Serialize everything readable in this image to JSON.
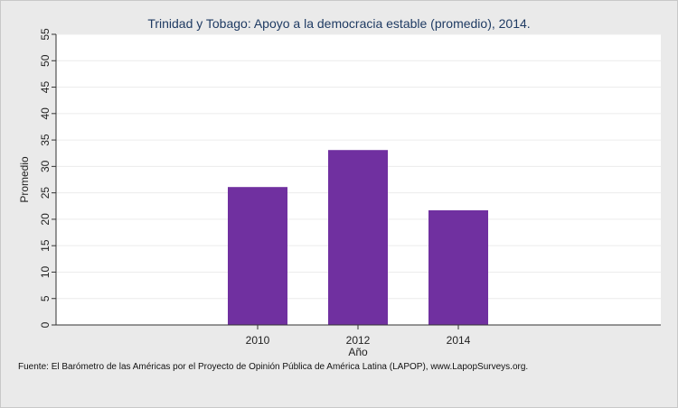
{
  "chart_data": {
    "type": "bar",
    "title": "Trinidad y Tobago: Apoyo a la democracia estable (promedio), 2014.",
    "xlabel": "Año",
    "ylabel": "Promedio",
    "categories": [
      "2010",
      "2012",
      "2014"
    ],
    "values": [
      26.1,
      33.1,
      21.7
    ],
    "ylim": [
      0,
      55
    ],
    "yticks": [
      "0",
      "5",
      "10",
      "15",
      "20",
      "25",
      "30",
      "35",
      "40",
      "45",
      "50",
      "55"
    ],
    "grid": true,
    "bar_color": "#7030a0",
    "plot_background": "#ffffff",
    "page_background": "#eaeaea",
    "title_color": "#1f3b63"
  },
  "source_note": "Fuente: El Barómetro de las Américas por el Proyecto de Opinión Pública de América Latina (LAPOP), www.LapopSurveys.org."
}
